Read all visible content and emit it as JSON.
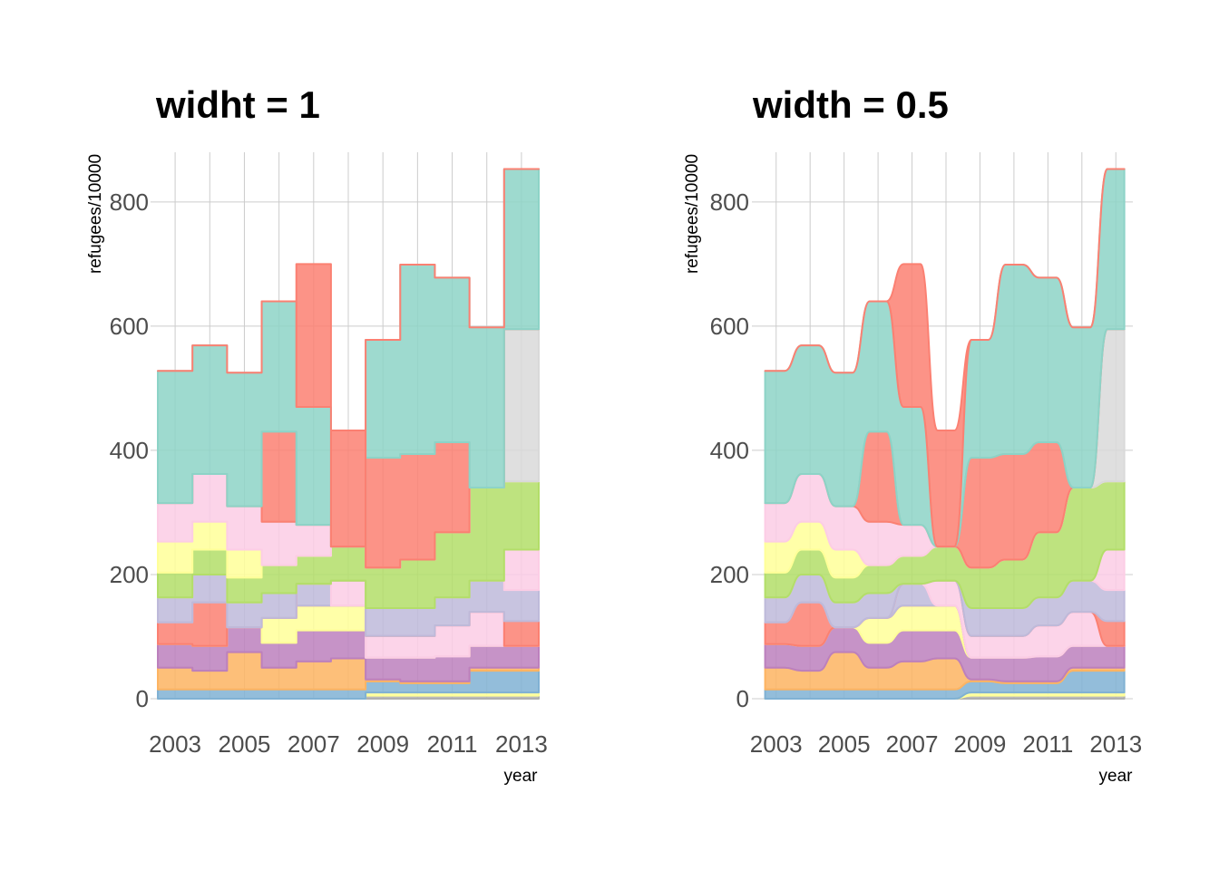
{
  "chart_data": [
    {
      "type": "area",
      "subtype": "stepped-stacked-area",
      "title": "widht = 1",
      "xlabel": "year",
      "ylabel": "refugees/10000",
      "x": [
        2003,
        2004,
        2005,
        2006,
        2007,
        2008,
        2009,
        2010,
        2011,
        2012,
        2013
      ],
      "xticks": [
        "2003",
        "2005",
        "2007",
        "2009",
        "2011",
        "2013"
      ],
      "yticks": [
        "0",
        "200",
        "400",
        "600",
        "800"
      ],
      "xlim": [
        2002.5,
        2013.5
      ],
      "ylim": [
        0,
        880
      ],
      "grid": true,
      "legend": "none",
      "step_width": 1,
      "series": [
        {
          "color": "#b0b0b0",
          "values": [
            0,
            0,
            0,
            0,
            0,
            0,
            5,
            5,
            5,
            5,
            5
          ]
        },
        {
          "color": "#ffff99",
          "values": [
            0,
            0,
            0,
            0,
            0,
            0,
            5,
            5,
            5,
            5,
            5
          ]
        },
        {
          "color": "#80b1d3",
          "values": [
            15,
            15,
            15,
            15,
            15,
            15,
            18,
            15,
            15,
            35,
            35
          ]
        },
        {
          "color": "#fdb462",
          "values": [
            35,
            30,
            60,
            35,
            45,
            50,
            3,
            3,
            3,
            5,
            5
          ]
        },
        {
          "color": "#bc80bd",
          "values": [
            38,
            40,
            40,
            40,
            50,
            45,
            35,
            38,
            40,
            35,
            35
          ]
        },
        {
          "color": "#ffff99",
          "values": [
            0,
            0,
            0,
            40,
            40,
            40,
            0,
            0,
            0,
            0,
            0
          ]
        },
        {
          "color": "#fb8072",
          "values": [
            35,
            70,
            0,
            0,
            0,
            0,
            0,
            0,
            0,
            0,
            0
          ]
        },
        {
          "color": "#bebada",
          "values": [
            0,
            0,
            0,
            0,
            35,
            0,
            0,
            0,
            0,
            0,
            0
          ]
        },
        {
          "color": "#fccde5",
          "values": [
            0,
            0,
            0,
            0,
            0,
            40,
            35,
            35,
            50,
            55,
            0
          ]
        },
        {
          "color": "#fb8072",
          "values": [
            0,
            0,
            0,
            0,
            0,
            0,
            0,
            0,
            0,
            0,
            40
          ]
        },
        {
          "color": "#bebada",
          "values": [
            40,
            45,
            40,
            40,
            0,
            0,
            45,
            45,
            45,
            50,
            50
          ]
        },
        {
          "color": "#fccde5",
          "values": [
            0,
            0,
            0,
            0,
            0,
            0,
            0,
            0,
            0,
            0,
            65
          ]
        },
        {
          "color": "#b3de69",
          "values": [
            40,
            40,
            40,
            45,
            45,
            55,
            65,
            78,
            105,
            150,
            110
          ]
        },
        {
          "color": "#ffff99",
          "values": [
            50,
            45,
            45,
            0,
            0,
            0,
            0,
            0,
            0,
            0,
            0
          ]
        },
        {
          "color": "#fccde5",
          "values": [
            62,
            77,
            70,
            70,
            50,
            0,
            0,
            0,
            0,
            0,
            0
          ]
        },
        {
          "color": "#d9d9d9",
          "values": [
            0,
            0,
            0,
            0,
            0,
            0,
            0,
            0,
            0,
            0,
            245
          ]
        },
        {
          "color": "#fb8072",
          "values": [
            0,
            0,
            0,
            145,
            0,
            0,
            177,
            170,
            145,
            0,
            0
          ]
        },
        {
          "color": "#8dd3c7",
          "values": [
            213,
            207,
            215,
            210,
            190,
            0,
            190,
            305,
            265,
            258,
            258
          ]
        },
        {
          "color": "#fb8072",
          "values": [
            0,
            0,
            0,
            0,
            230,
            187,
            0,
            0,
            0,
            0,
            0
          ]
        }
      ]
    },
    {
      "type": "area",
      "subtype": "smoothed-stacked-area",
      "title": "width = 0.5",
      "xlabel": "year",
      "ylabel": "refugees/10000",
      "x": [
        2003,
        2004,
        2005,
        2006,
        2007,
        2008,
        2009,
        2010,
        2011,
        2012,
        2013
      ],
      "xticks": [
        "2003",
        "2005",
        "2007",
        "2009",
        "2011",
        "2013"
      ],
      "yticks": [
        "0",
        "200",
        "400",
        "600",
        "800"
      ],
      "xlim": [
        2002.5,
        2013.5
      ],
      "ylim": [
        0,
        880
      ],
      "grid": true,
      "legend": "none",
      "step_width": 0.5,
      "series": "same values as the first chart"
    }
  ]
}
